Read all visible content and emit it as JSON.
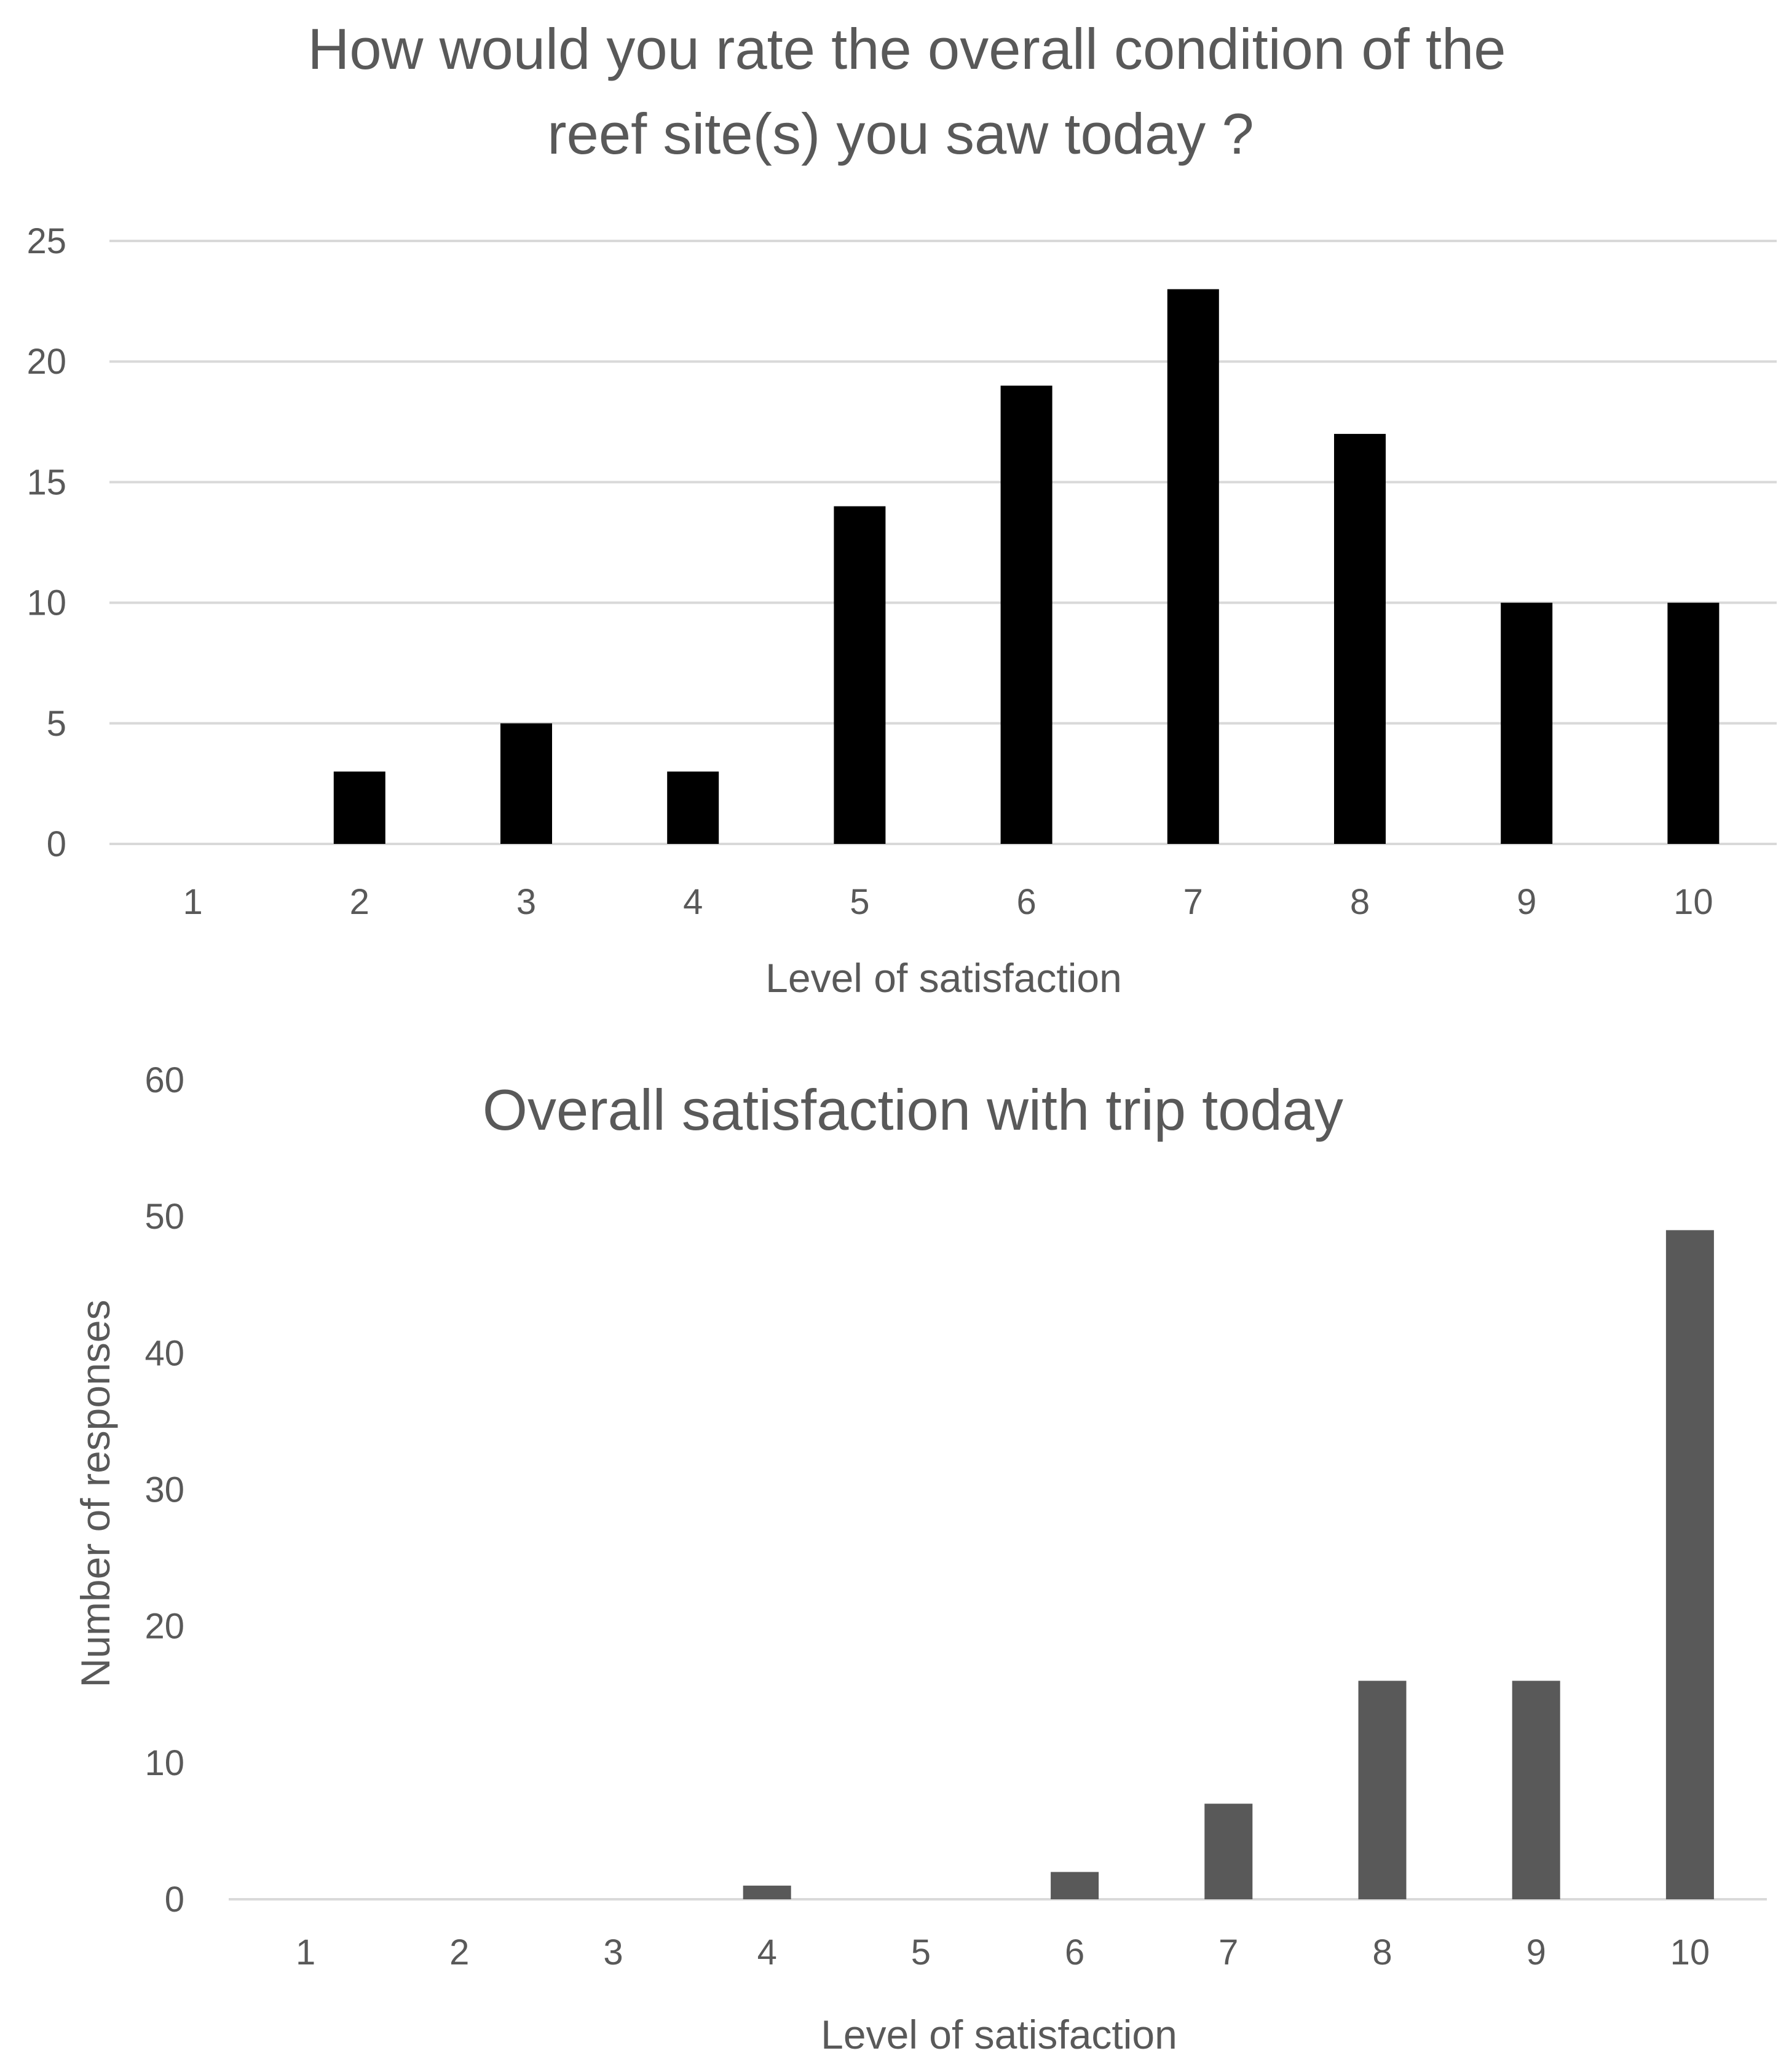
{
  "chart_data": [
    {
      "type": "bar",
      "title": "How would you rate the overall condition of the reef site(s) you saw today ?",
      "title_lines": [
        "How would you rate the overall condition of the",
        "reef site(s) you saw today ?"
      ],
      "xlabel": "Level of satisfaction",
      "ylabel": "",
      "categories": [
        "1",
        "2",
        "3",
        "4",
        "5",
        "6",
        "7",
        "8",
        "9",
        "10"
      ],
      "values": [
        0,
        3,
        5,
        3,
        14,
        19,
        23,
        17,
        10,
        10
      ],
      "ylim": [
        0,
        25
      ],
      "yticks": [
        "0",
        "5",
        "10",
        "15",
        "20",
        "25"
      ],
      "grid": true,
      "bar_color": "#000000"
    },
    {
      "type": "bar",
      "title": "Overall satisfaction with trip today",
      "title_lines": [
        "Overall satisfaction with trip today"
      ],
      "xlabel": "Level of satisfaction",
      "ylabel": "Number of responses",
      "categories": [
        "1",
        "2",
        "3",
        "4",
        "5",
        "6",
        "7",
        "8",
        "9",
        "10"
      ],
      "values": [
        0,
        0,
        0,
        1,
        0,
        2,
        7,
        16,
        16,
        49
      ],
      "ylim": [
        0,
        60
      ],
      "yticks": [
        "0",
        "10",
        "20",
        "30",
        "40",
        "50",
        "60"
      ],
      "grid": false,
      "bar_color": "#595959"
    }
  ]
}
